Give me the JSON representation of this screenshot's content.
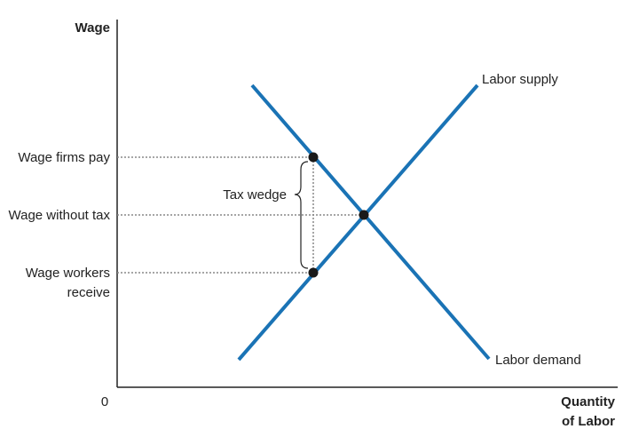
{
  "axes": {
    "y_label": "Wage",
    "x_label_line1": "Quantity",
    "x_label_line2": "of Labor",
    "origin": "0"
  },
  "wage_levels": {
    "firms_pay": "Wage firms pay",
    "without_tax": "Wage without tax",
    "workers_receive_line1": "Wage workers",
    "workers_receive_line2": "receive"
  },
  "curves": {
    "supply": "Labor supply",
    "demand": "Labor demand"
  },
  "annotation": {
    "tax_wedge": "Tax wedge"
  },
  "colors": {
    "curve": "#1a73b5",
    "axis": "#222222",
    "dotted": "#888888",
    "point": "#1a1a1a"
  }
}
